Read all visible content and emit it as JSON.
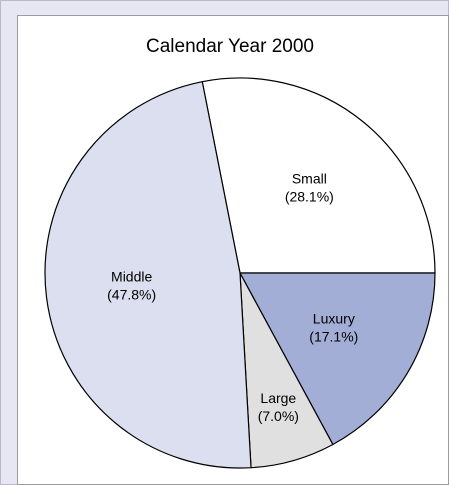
{
  "chart_data": {
    "type": "pie",
    "title": "Calendar Year 2000",
    "categories": [
      "Small",
      "Luxury",
      "Large",
      "Middle"
    ],
    "values": [
      28.1,
      17.1,
      7.0,
      47.8
    ],
    "value_labels": [
      "(28.1%)",
      "(17.1%)",
      "(7.0%)",
      "(47.8%)"
    ],
    "colors": [
      "#ffffff",
      "#a3aed6",
      "#e0e0e0",
      "#dcdff0"
    ]
  }
}
